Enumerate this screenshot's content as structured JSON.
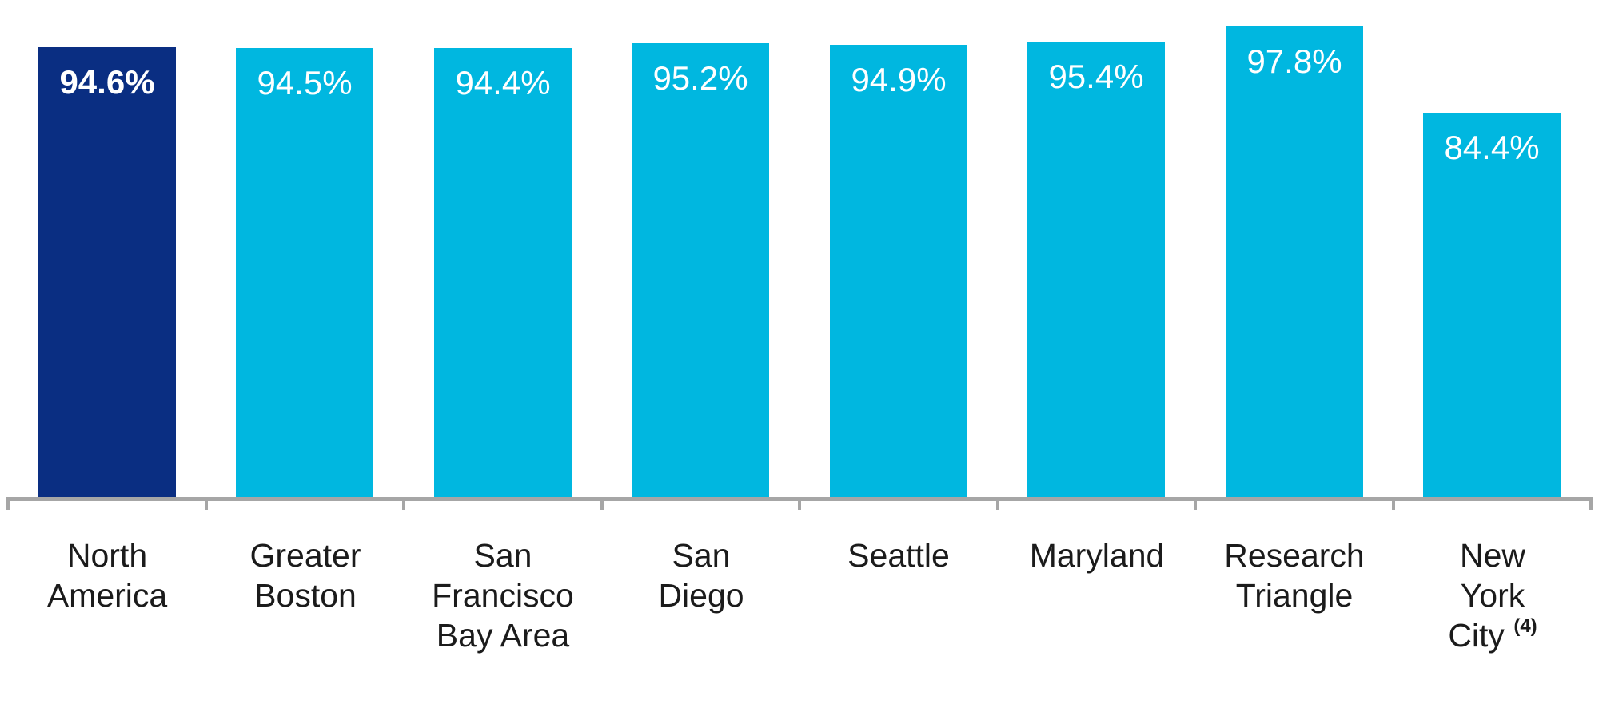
{
  "chart_data": {
    "type": "bar",
    "title": "",
    "xlabel": "",
    "ylabel": "",
    "ylim": [
      25,
      100
    ],
    "grid": false,
    "legend": null,
    "categories": [
      {
        "lines": [
          "North",
          "America"
        ],
        "sup": ""
      },
      {
        "lines": [
          "Greater",
          "Boston"
        ],
        "sup": ""
      },
      {
        "lines": [
          "San",
          "Francisco",
          "Bay Area"
        ],
        "sup": ""
      },
      {
        "lines": [
          "San",
          "Diego"
        ],
        "sup": ""
      },
      {
        "lines": [
          "Seattle"
        ],
        "sup": ""
      },
      {
        "lines": [
          "Maryland"
        ],
        "sup": ""
      },
      {
        "lines": [
          "Research",
          "Triangle"
        ],
        "sup": ""
      },
      {
        "lines": [
          "New",
          "York",
          "City"
        ],
        "sup": "(4)"
      }
    ],
    "values": [
      94.6,
      94.5,
      94.4,
      95.2,
      94.9,
      95.4,
      97.8,
      84.4
    ],
    "value_labels": [
      "94.6%",
      "94.5%",
      "94.4%",
      "95.2%",
      "94.9%",
      "95.4%",
      "97.8%",
      "84.4%"
    ],
    "highlight_index": 0,
    "colors": {
      "highlight_bar": "#0a2e82",
      "default_bar": "#00b7e0",
      "axis": "#a6a6a6",
      "value_text": "#ffffff",
      "category_text": "#1b1b1b"
    }
  },
  "layout": {
    "note": ""
  }
}
